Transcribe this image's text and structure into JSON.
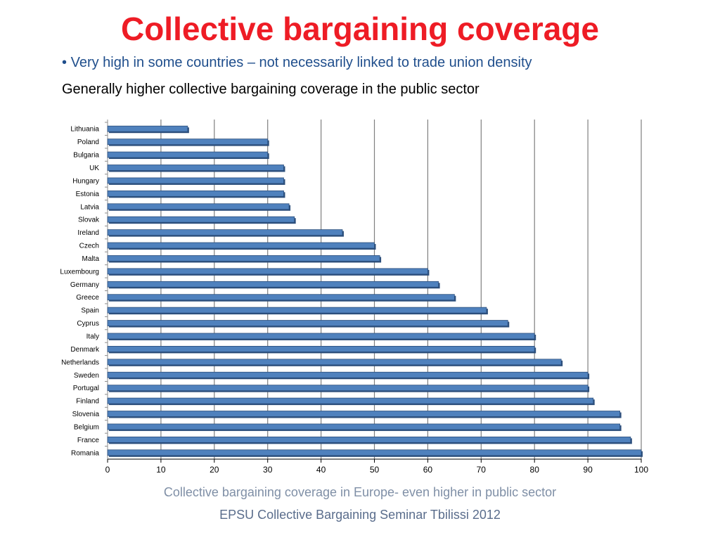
{
  "slide": {
    "title": "Collective bargaining coverage",
    "bullet_mark": "•",
    "bullet": "Very high in some countries – not necessarily linked to trade union density",
    "subline": "Generally higher collective bargaining coverage in the public sector",
    "footer_caption": "Collective bargaining coverage in Europe- even higher in public sector",
    "footer_event": "EPSU Collective Bargaining Seminar Tbilissi 2012"
  },
  "colors": {
    "title": "#ee1c25",
    "bullet": "#1f4e8c",
    "bar": "#4f81bd",
    "bar_dark": "#2c4f7c",
    "gridline": "#7f7f7f"
  },
  "chart_data": {
    "type": "bar",
    "orientation": "horizontal",
    "categories": [
      "Lithuania",
      "Poland",
      "Bulgaria",
      "UK",
      "Hungary",
      "Estonia",
      "Latvia",
      "Slovak",
      "Ireland",
      "Czech",
      "Malta",
      "Luxembourg",
      "Germany",
      "Greece",
      "Spain",
      "Cyprus",
      "Italy",
      "Denmark",
      "Netherlands",
      "Sweden",
      "Portugal",
      "Finland",
      "Slovenia",
      "Belgium",
      "France",
      "Romania"
    ],
    "values": [
      15,
      30,
      30,
      33,
      33,
      33,
      34,
      35,
      44,
      50,
      51,
      60,
      62,
      65,
      71,
      75,
      80,
      80,
      85,
      90,
      90,
      91,
      96,
      96,
      98,
      100
    ],
    "xlim": [
      0,
      100
    ],
    "xticks": [
      0,
      10,
      20,
      30,
      40,
      50,
      60,
      70,
      80,
      90,
      100
    ],
    "title": "",
    "xlabel": "",
    "ylabel": "",
    "grid": "vertical",
    "legend": "none"
  }
}
